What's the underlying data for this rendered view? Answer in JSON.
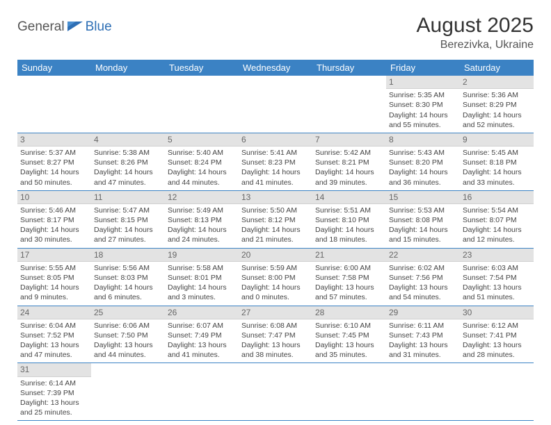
{
  "logo": {
    "text1": "General",
    "text2": "Blue",
    "accent": "#2e6fb5"
  },
  "title": "August 2025",
  "location": "Berezivka, Ukraine",
  "colors": {
    "header_bg": "#3b82c4",
    "header_fg": "#ffffff",
    "daybar_bg": "#e3e3e3",
    "rule": "#3b82c4"
  },
  "weekdays": [
    "Sunday",
    "Monday",
    "Tuesday",
    "Wednesday",
    "Thursday",
    "Friday",
    "Saturday"
  ],
  "weeks": [
    [
      null,
      null,
      null,
      null,
      null,
      {
        "n": "1",
        "sr": "5:35 AM",
        "ss": "8:30 PM",
        "dl": "14 hours and 55 minutes."
      },
      {
        "n": "2",
        "sr": "5:36 AM",
        "ss": "8:29 PM",
        "dl": "14 hours and 52 minutes."
      }
    ],
    [
      {
        "n": "3",
        "sr": "5:37 AM",
        "ss": "8:27 PM",
        "dl": "14 hours and 50 minutes."
      },
      {
        "n": "4",
        "sr": "5:38 AM",
        "ss": "8:26 PM",
        "dl": "14 hours and 47 minutes."
      },
      {
        "n": "5",
        "sr": "5:40 AM",
        "ss": "8:24 PM",
        "dl": "14 hours and 44 minutes."
      },
      {
        "n": "6",
        "sr": "5:41 AM",
        "ss": "8:23 PM",
        "dl": "14 hours and 41 minutes."
      },
      {
        "n": "7",
        "sr": "5:42 AM",
        "ss": "8:21 PM",
        "dl": "14 hours and 39 minutes."
      },
      {
        "n": "8",
        "sr": "5:43 AM",
        "ss": "8:20 PM",
        "dl": "14 hours and 36 minutes."
      },
      {
        "n": "9",
        "sr": "5:45 AM",
        "ss": "8:18 PM",
        "dl": "14 hours and 33 minutes."
      }
    ],
    [
      {
        "n": "10",
        "sr": "5:46 AM",
        "ss": "8:17 PM",
        "dl": "14 hours and 30 minutes."
      },
      {
        "n": "11",
        "sr": "5:47 AM",
        "ss": "8:15 PM",
        "dl": "14 hours and 27 minutes."
      },
      {
        "n": "12",
        "sr": "5:49 AM",
        "ss": "8:13 PM",
        "dl": "14 hours and 24 minutes."
      },
      {
        "n": "13",
        "sr": "5:50 AM",
        "ss": "8:12 PM",
        "dl": "14 hours and 21 minutes."
      },
      {
        "n": "14",
        "sr": "5:51 AM",
        "ss": "8:10 PM",
        "dl": "14 hours and 18 minutes."
      },
      {
        "n": "15",
        "sr": "5:53 AM",
        "ss": "8:08 PM",
        "dl": "14 hours and 15 minutes."
      },
      {
        "n": "16",
        "sr": "5:54 AM",
        "ss": "8:07 PM",
        "dl": "14 hours and 12 minutes."
      }
    ],
    [
      {
        "n": "17",
        "sr": "5:55 AM",
        "ss": "8:05 PM",
        "dl": "14 hours and 9 minutes."
      },
      {
        "n": "18",
        "sr": "5:56 AM",
        "ss": "8:03 PM",
        "dl": "14 hours and 6 minutes."
      },
      {
        "n": "19",
        "sr": "5:58 AM",
        "ss": "8:01 PM",
        "dl": "14 hours and 3 minutes."
      },
      {
        "n": "20",
        "sr": "5:59 AM",
        "ss": "8:00 PM",
        "dl": "14 hours and 0 minutes."
      },
      {
        "n": "21",
        "sr": "6:00 AM",
        "ss": "7:58 PM",
        "dl": "13 hours and 57 minutes."
      },
      {
        "n": "22",
        "sr": "6:02 AM",
        "ss": "7:56 PM",
        "dl": "13 hours and 54 minutes."
      },
      {
        "n": "23",
        "sr": "6:03 AM",
        "ss": "7:54 PM",
        "dl": "13 hours and 51 minutes."
      }
    ],
    [
      {
        "n": "24",
        "sr": "6:04 AM",
        "ss": "7:52 PM",
        "dl": "13 hours and 47 minutes."
      },
      {
        "n": "25",
        "sr": "6:06 AM",
        "ss": "7:50 PM",
        "dl": "13 hours and 44 minutes."
      },
      {
        "n": "26",
        "sr": "6:07 AM",
        "ss": "7:49 PM",
        "dl": "13 hours and 41 minutes."
      },
      {
        "n": "27",
        "sr": "6:08 AM",
        "ss": "7:47 PM",
        "dl": "13 hours and 38 minutes."
      },
      {
        "n": "28",
        "sr": "6:10 AM",
        "ss": "7:45 PM",
        "dl": "13 hours and 35 minutes."
      },
      {
        "n": "29",
        "sr": "6:11 AM",
        "ss": "7:43 PM",
        "dl": "13 hours and 31 minutes."
      },
      {
        "n": "30",
        "sr": "6:12 AM",
        "ss": "7:41 PM",
        "dl": "13 hours and 28 minutes."
      }
    ],
    [
      {
        "n": "31",
        "sr": "6:14 AM",
        "ss": "7:39 PM",
        "dl": "13 hours and 25 minutes."
      },
      null,
      null,
      null,
      null,
      null,
      null
    ]
  ],
  "labels": {
    "sunrise": "Sunrise:",
    "sunset": "Sunset:",
    "daylight": "Daylight:"
  }
}
